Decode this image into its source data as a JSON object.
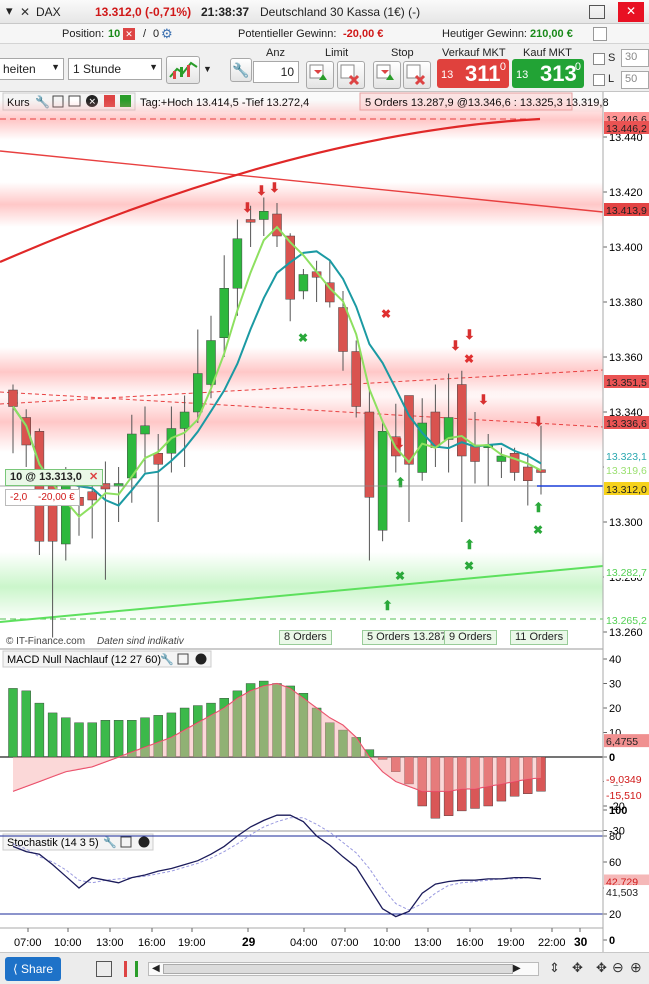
{
  "titlebar": {
    "symbol": "DAX",
    "price_change": "13.312,0 (-0,71%)",
    "time": "21:38:37",
    "instrument": "Deutschland 30 Kassa (1€) (-)"
  },
  "positionbar": {
    "position_label": "Position:",
    "position_value": "10",
    "orders_value": "0",
    "pnl_label": "Potentieller Gewinn:",
    "pnl_value": "-20,00 €",
    "today_label": "Heutiger Gewinn:",
    "today_value": "210,00 €"
  },
  "toolbar": {
    "unit_select": "heiten",
    "interval_select": "1 Stunde",
    "anz_label": "Anz",
    "qty_value": "10",
    "limit_label": "Limit",
    "stop_label": "Stop",
    "sell_label": "Verkauf MKT",
    "buy_label": "Kauf MKT",
    "sell_small": "13",
    "sell_big": "311",
    "sell_dec": "0",
    "buy_small": "13",
    "buy_big": "313",
    "buy_dec": "0",
    "s_label": "S",
    "l_label": "L",
    "s_value": "30",
    "l_value": "50"
  },
  "kurs": {
    "title": "Kurs",
    "info": "Tag:+Hoch 13.414,5 -Tief 13.272,4",
    "orders_label": "5 Orders 13.287,9 @13.346,6 : 13.325,3  13.319,8",
    "watermark": "© IT-Finance.com",
    "watermark2": "Daten sind indikativ",
    "position_tag": "10 @ 13.313,0",
    "pos_pl_pts": "-2,0",
    "pos_pl_eur": "-20,00 €",
    "price_ticks": [
      "13.440",
      "13.420",
      "13.400",
      "13.380",
      "13.360",
      "13.340",
      "13.320",
      "13.300",
      "13.280",
      "13.260"
    ],
    "right_labels": [
      {
        "text": "13.446,6",
        "color": "#ff8a8a"
      },
      {
        "text": "13.446,2",
        "color": "#e84040"
      },
      {
        "text": "13.413,9",
        "color": "#e03030"
      },
      {
        "text": "13.351,5",
        "color": "#e84040"
      },
      {
        "text": "13.336,6",
        "color": "#e84040"
      },
      {
        "text": "13.323,1",
        "color": "#2aa8b0"
      },
      {
        "text": "13.319,6",
        "color": "#9be070"
      },
      {
        "text": "13.312,0",
        "color": "#f2c500"
      },
      {
        "text": "13.282,7",
        "color": "#55d055"
      },
      {
        "text": "13.265,2",
        "color": "#55d055"
      }
    ],
    "order_tags": [
      "8 Orders",
      "5 Orders 13.287,1",
      "9 Orders",
      "11 Orders"
    ]
  },
  "macd": {
    "title": "MACD Null Nachlauf (12 27 60)",
    "ticks": [
      "40",
      "30",
      "20",
      "10",
      "0",
      "-10",
      "-20",
      "-30"
    ],
    "right_labels": [
      "6,4755",
      "-9,0349",
      "-15,510"
    ]
  },
  "stoch": {
    "title": "Stochastik (14 3 5)",
    "ticks": [
      "100",
      "80",
      "60",
      "40",
      "20",
      "0"
    ],
    "right_labels": [
      "42,729",
      "41,503"
    ]
  },
  "xaxis": {
    "labels": [
      "07:00",
      "10:00",
      "13:00",
      "16:00",
      "19:00",
      "29",
      "04:00",
      "07:00",
      "10:00",
      "13:00",
      "16:00",
      "19:00",
      "22:00",
      "30"
    ]
  },
  "status": {
    "share_label": "Share"
  },
  "colors": {
    "up": "#2db83d",
    "down": "#d9534f",
    "bid": "#e0413d",
    "ask": "#22a335"
  }
}
